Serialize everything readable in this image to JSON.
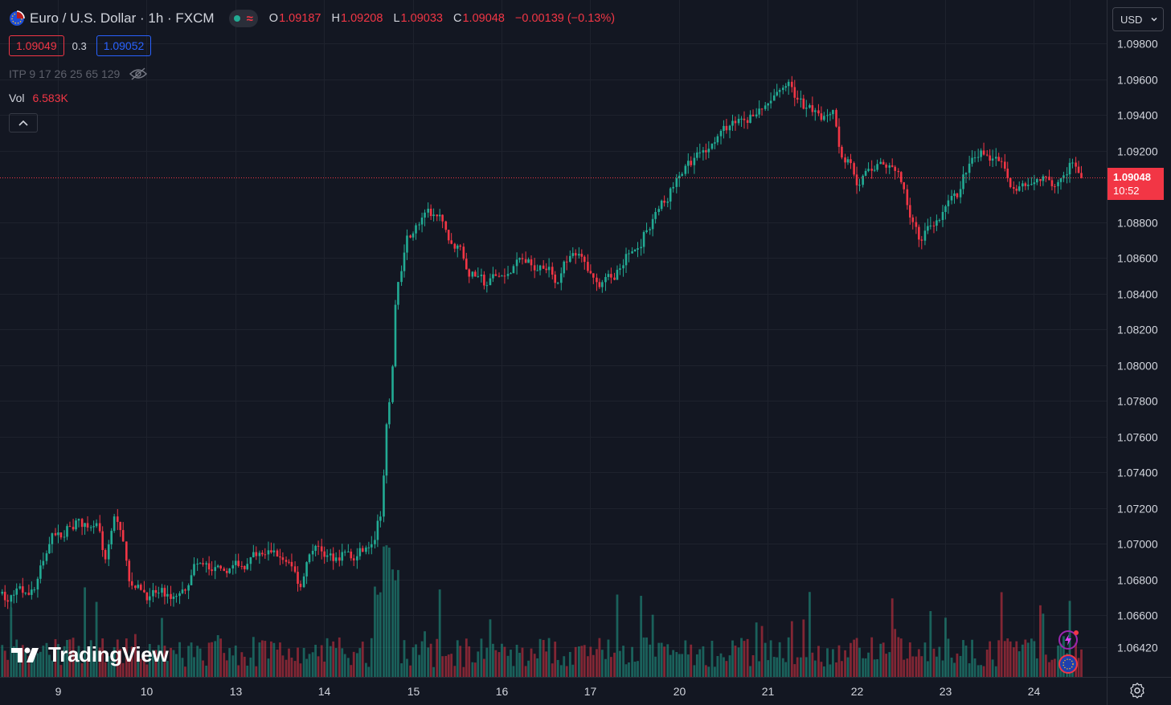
{
  "header": {
    "symbol_title": "Euro / U.S. Dollar · 1h · FXCM",
    "ohlc": [
      {
        "label": "O",
        "value": "1.09187"
      },
      {
        "label": "H",
        "value": "1.09208"
      },
      {
        "label": "L",
        "value": "1.09033"
      },
      {
        "label": "C",
        "value": "1.09048"
      }
    ],
    "change": "−0.00139 (−0.13%)",
    "bid": "1.09049",
    "spread": "0.3",
    "ask": "1.09052",
    "indicator_label": "ITP 9 17 26 25 65 129",
    "volume_label": "Vol",
    "volume_value": "6.583K"
  },
  "currency_button": {
    "label": "USD"
  },
  "last_price_label": {
    "price": "1.09048",
    "countdown": "10:52"
  },
  "branding": {
    "logo_text": "TradingView"
  },
  "colors": {
    "background": "#131722",
    "up": "#22ab94",
    "down": "#f23645",
    "grid": "#1e222d",
    "text": "#d1d4dc",
    "bid_border": "#f23645",
    "ask_border": "#2962ff"
  },
  "chart_data": {
    "type": "candlestick",
    "symbol": "EURUSD",
    "interval": "1h",
    "price_axis": {
      "ticks": [
        1.098,
        1.096,
        1.094,
        1.092,
        1.088,
        1.086,
        1.084,
        1.082,
        1.08,
        1.078,
        1.076,
        1.074,
        1.072,
        1.07,
        1.068,
        1.066,
        1.0642
      ],
      "tick_labels": [
        "1.09800",
        "1.09600",
        "1.09400",
        "1.09200",
        "1.08800",
        "1.08600",
        "1.08400",
        "1.08200",
        "1.08000",
        "1.07800",
        "1.07600",
        "1.07400",
        "1.07200",
        "1.07000",
        "1.06800",
        "1.06600",
        "1.06420"
      ]
    },
    "time_axis": {
      "labels": [
        {
          "label": "9",
          "bar": 6
        },
        {
          "label": "10",
          "bar": 16
        },
        {
          "label": "13",
          "bar": 26
        },
        {
          "label": "14",
          "bar": 36
        },
        {
          "label": "15",
          "bar": 46
        },
        {
          "label": "16",
          "bar": 56
        },
        {
          "label": "17",
          "bar": 66
        },
        {
          "label": "20",
          "bar": 76
        },
        {
          "label": "21",
          "bar": 86
        },
        {
          "label": "22",
          "bar": 96
        },
        {
          "label": "23",
          "bar": 106
        },
        {
          "label": "24",
          "bar": 116
        },
        {
          "label": "",
          "bar": 120
        }
      ]
    },
    "last_price": 1.09048,
    "waypoints": [
      [
        0,
        1.0672
      ],
      [
        3,
        1.0675
      ],
      [
        5,
        1.0705
      ],
      [
        8,
        1.071
      ],
      [
        10,
        1.0708
      ],
      [
        11,
        1.069
      ],
      [
        12,
        1.0715
      ],
      [
        13,
        1.0705
      ],
      [
        14,
        1.068
      ],
      [
        16,
        1.067
      ],
      [
        19,
        1.0668
      ],
      [
        21,
        1.0685
      ],
      [
        25,
        1.0682
      ],
      [
        28,
        1.069
      ],
      [
        31,
        1.0695
      ],
      [
        33,
        1.0675
      ],
      [
        34,
        1.0698
      ],
      [
        38,
        1.0696
      ],
      [
        39,
        1.069
      ],
      [
        41,
        1.0702
      ],
      [
        42,
        1.0718
      ],
      [
        43,
        1.078
      ],
      [
        44,
        1.0845
      ],
      [
        45,
        1.0875
      ],
      [
        47,
        1.0882
      ],
      [
        49,
        1.0878
      ],
      [
        51,
        1.0865
      ],
      [
        52,
        1.085
      ],
      [
        55,
        1.0847
      ],
      [
        58,
        1.0855
      ],
      [
        62,
        1.085
      ],
      [
        64,
        1.0858
      ],
      [
        66,
        1.085
      ],
      [
        69,
        1.0852
      ],
      [
        71,
        1.0867
      ],
      [
        74,
        1.0895
      ],
      [
        78,
        1.092
      ],
      [
        82,
        1.0935
      ],
      [
        85,
        1.0945
      ],
      [
        88,
        1.0955
      ],
      [
        90,
        1.094
      ],
      [
        93,
        1.0945
      ],
      [
        94,
        1.0915
      ],
      [
        96,
        1.0905
      ],
      [
        98,
        1.0915
      ],
      [
        101,
        1.09
      ],
      [
        102,
        1.0882
      ],
      [
        103,
        1.0872
      ],
      [
        106,
        1.089
      ],
      [
        109,
        1.0912
      ],
      [
        111,
        1.092
      ],
      [
        113,
        1.0903
      ],
      [
        116,
        1.0905
      ],
      [
        118,
        1.09
      ],
      [
        120,
        1.0913
      ],
      [
        121,
        1.09048
      ]
    ]
  }
}
